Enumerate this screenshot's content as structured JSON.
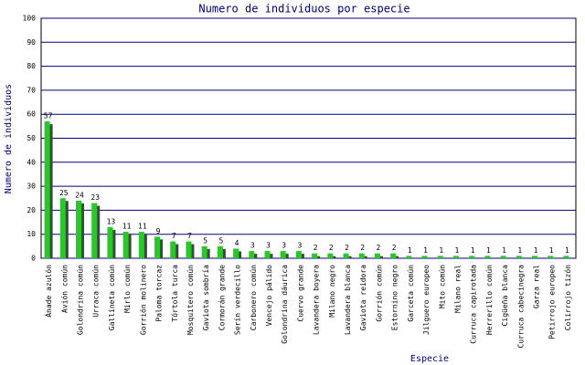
{
  "chart_data": {
    "type": "bar",
    "title": "Numero de individuos por especie",
    "x_label": "Especie",
    "y_label": "Numero de individuos",
    "categories": [
      "Ánade azulón",
      "Avión común",
      "Golondrina común",
      "Urraca común",
      "Gallineta común",
      "Mirlo común",
      "Gorrión molinero",
      "Paloma torcaz",
      "Tórtola turca",
      "Mosquitero común",
      "Gaviota sombría",
      "Cormorán grande",
      "Serín verdecillo",
      "Carbonero común",
      "Vencejo pálido",
      "Golondrina dáurica",
      "Cuervo grande",
      "Lavandera boyera",
      "Milano negro",
      "Lavandera blanca",
      "Gaviota reidora",
      "Gorrión común",
      "Estornino negro",
      "Garceta común",
      "Jilguero europeo",
      "Mito común",
      "Milano real",
      "Curruca capirotada",
      "Herrerillo común",
      "Cigüeña blanca",
      "Curruca cabecinegra",
      "Garza real",
      "Petirrojo europeo",
      "Colirrojo tizón"
    ],
    "values": [
      57,
      25,
      24,
      23,
      13,
      11,
      11,
      9,
      7,
      7,
      5,
      5,
      4,
      3,
      3,
      3,
      3,
      2,
      2,
      2,
      2,
      2,
      2,
      1,
      1,
      1,
      1,
      1,
      1,
      1,
      1,
      1,
      1,
      1
    ],
    "color": "#22cc22",
    "shadow_color": "#444444",
    "ylim": [
      0,
      100
    ],
    "yticks": [
      0,
      10,
      20,
      30,
      40,
      50,
      60,
      70,
      80,
      90,
      100
    ],
    "grid": true
  }
}
